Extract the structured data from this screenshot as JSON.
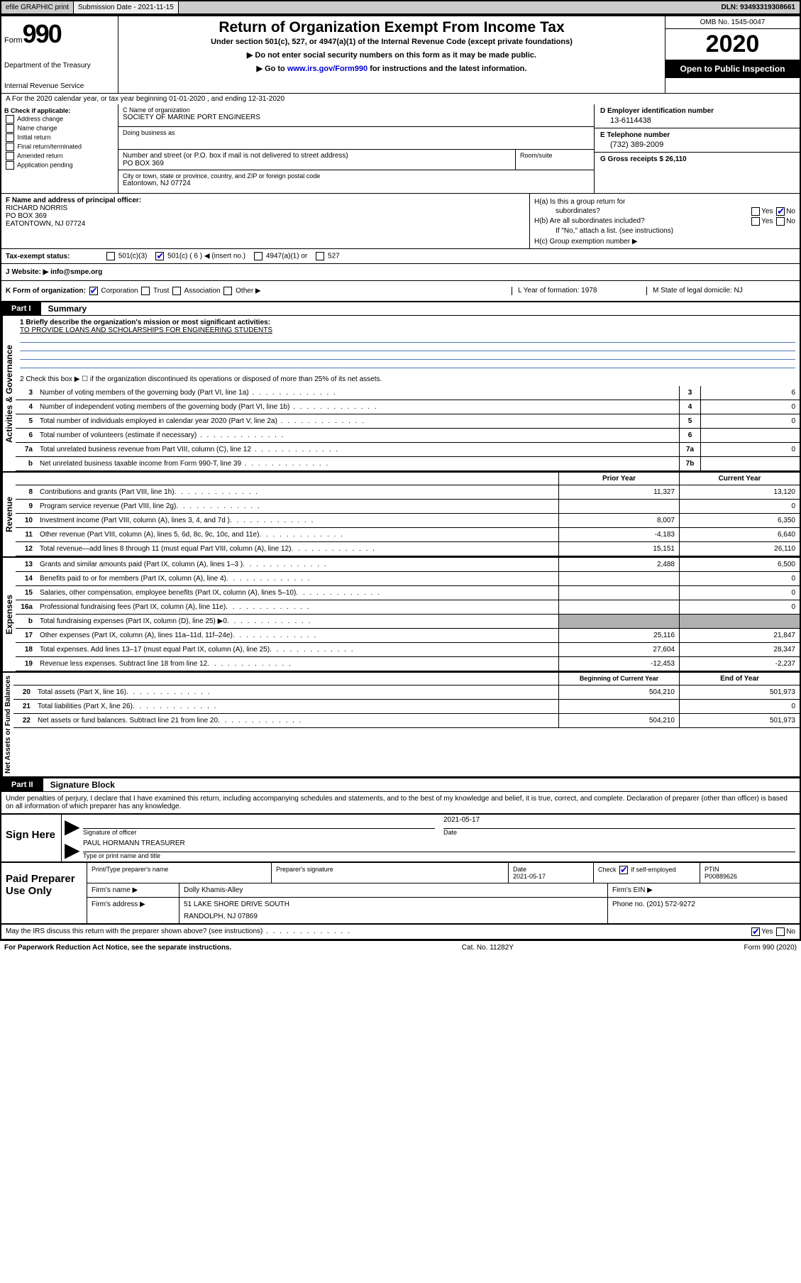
{
  "topbar": {
    "efile": "efile GRAPHIC print",
    "submission_label": "Submission Date - 2021-11-15",
    "dln": "DLN: 93493319308661"
  },
  "header": {
    "form_word": "Form",
    "form_num": "990",
    "dept": "Department of the Treasury",
    "irs": "Internal Revenue Service",
    "title": "Return of Organization Exempt From Income Tax",
    "sub1": "Under section 501(c), 527, or 4947(a)(1) of the Internal Revenue Code (except private foundations)",
    "sub2": "▶ Do not enter social security numbers on this form as it may be made public.",
    "sub3_pre": "▶ Go to ",
    "sub3_link": "www.irs.gov/Form990",
    "sub3_post": " for instructions and the latest information.",
    "omb": "OMB No. 1545-0047",
    "year": "2020",
    "inspect": "Open to Public Inspection"
  },
  "lineA": "A For the 2020 calendar year, or tax year beginning 01-01-2020   , and ending 12-31-2020",
  "colB": {
    "hdr": "B Check if applicable:",
    "o1": "Address change",
    "o2": "Name change",
    "o3": "Initial return",
    "o4": "Final return/terminated",
    "o5": "Amended return",
    "o6": "Application pending"
  },
  "colC": {
    "name_lbl": "C Name of organization",
    "name": "SOCIETY OF MARINE PORT ENGINEERS",
    "dba_lbl": "Doing business as",
    "addr_lbl": "Number and street (or P.O. box if mail is not delivered to street address)",
    "addr": "PO BOX 369",
    "room_lbl": "Room/suite",
    "city_lbl": "City or town, state or province, country, and ZIP or foreign postal code",
    "city": "Eatontown, NJ  07724"
  },
  "colD": {
    "ein_lbl": "D Employer identification number",
    "ein": "13-6114438",
    "tel_lbl": "E Telephone number",
    "tel": "(732) 389-2009",
    "gross_lbl": "G Gross receipts $ 26,110"
  },
  "rowF": {
    "lbl": "F Name and address of principal officer:",
    "l1": "RICHARD NORRIS",
    "l2": "PO BOX 369",
    "l3": "EATONTOWN, NJ  07724"
  },
  "rowH": {
    "ha": "H(a)  Is this a group return for",
    "ha2": "subordinates?",
    "hb": "H(b)  Are all subordinates included?",
    "hb2": "If \"No,\" attach a list. (see instructions)",
    "hc": "H(c)  Group exemption number ▶",
    "yes": "Yes",
    "no": "No"
  },
  "taxRow": {
    "lbl": "Tax-exempt status:",
    "o1": "501(c)(3)",
    "o2": "501(c) ( 6 ) ◀ (insert no.)",
    "o3": "4947(a)(1) or",
    "o4": "527"
  },
  "rowJ": {
    "lbl": "J   Website: ▶",
    "val": "  info@smpe.org"
  },
  "rowK": {
    "lbl": "K Form of organization:",
    "o1": "Corporation",
    "o2": "Trust",
    "o3": "Association",
    "o4": "Other ▶",
    "l_lbl": "L Year of formation: 1978",
    "m_lbl": "M State of legal domicile: NJ"
  },
  "part1": {
    "label": "Part I",
    "title": "Summary"
  },
  "gov": {
    "side": "Activities & Governance",
    "l1a": "1   Briefly describe the organization's mission or most significant activities:",
    "l1b": "TO PROVIDE LOANS AND SCHOLARSHIPS FOR ENGINEERING STUDENTS",
    "l2": "2   Check this box ▶ ☐  if the organization discontinued its operations or disposed of more than 25% of its net assets.",
    "rows": [
      {
        "n": "3",
        "t": "Number of voting members of the governing body (Part VI, line 1a)",
        "bn": "3",
        "v": "6"
      },
      {
        "n": "4",
        "t": "Number of independent voting members of the governing body (Part VI, line 1b)",
        "bn": "4",
        "v": "0"
      },
      {
        "n": "5",
        "t": "Total number of individuals employed in calendar year 2020 (Part V, line 2a)",
        "bn": "5",
        "v": "0"
      },
      {
        "n": "6",
        "t": "Total number of volunteers (estimate if necessary)",
        "bn": "6",
        "v": ""
      },
      {
        "n": "7a",
        "t": "Total unrelated business revenue from Part VIII, column (C), line 12",
        "bn": "7a",
        "v": "0"
      },
      {
        "n": "b",
        "t": "Net unrelated business taxable income from Form 990-T, line 39",
        "bn": "7b",
        "v": ""
      }
    ]
  },
  "colhdr": {
    "c1": "Prior Year",
    "c2": "Current Year"
  },
  "rev": {
    "side": "Revenue",
    "rows": [
      {
        "n": "8",
        "t": "Contributions and grants (Part VIII, line 1h)",
        "v1": "11,327",
        "v2": "13,120"
      },
      {
        "n": "9",
        "t": "Program service revenue (Part VIII, line 2g)",
        "v1": "",
        "v2": "0"
      },
      {
        "n": "10",
        "t": "Investment income (Part VIII, column (A), lines 3, 4, and 7d )",
        "v1": "8,007",
        "v2": "6,350"
      },
      {
        "n": "11",
        "t": "Other revenue (Part VIII, column (A), lines 5, 6d, 8c, 9c, 10c, and 11e)",
        "v1": "-4,183",
        "v2": "6,640"
      },
      {
        "n": "12",
        "t": "Total revenue—add lines 8 through 11 (must equal Part VIII, column (A), line 12)",
        "v1": "15,151",
        "v2": "26,110"
      }
    ]
  },
  "exp": {
    "side": "Expenses",
    "rows": [
      {
        "n": "13",
        "t": "Grants and similar amounts paid (Part IX, column (A), lines 1–3 )",
        "v1": "2,488",
        "v2": "6,500"
      },
      {
        "n": "14",
        "t": "Benefits paid to or for members (Part IX, column (A), line 4)",
        "v1": "",
        "v2": "0"
      },
      {
        "n": "15",
        "t": "Salaries, other compensation, employee benefits (Part IX, column (A), lines 5–10)",
        "v1": "",
        "v2": "0"
      },
      {
        "n": "16a",
        "t": "Professional fundraising fees (Part IX, column (A), line 11e)",
        "v1": "",
        "v2": "0"
      },
      {
        "n": "b",
        "t": "Total fundraising expenses (Part IX, column (D), line 25) ▶0",
        "v1": "shade",
        "v2": "shade"
      },
      {
        "n": "17",
        "t": "Other expenses (Part IX, column (A), lines 11a–11d, 11f–24e)",
        "v1": "25,116",
        "v2": "21,847"
      },
      {
        "n": "18",
        "t": "Total expenses. Add lines 13–17 (must equal Part IX, column (A), line 25)",
        "v1": "27,604",
        "v2": "28,347"
      },
      {
        "n": "19",
        "t": "Revenue less expenses. Subtract line 18 from line 12",
        "v1": "-12,453",
        "v2": "-2,237"
      }
    ]
  },
  "net": {
    "side": "Net Assets or Fund Balances",
    "hdr1": "Beginning of Current Year",
    "hdr2": "End of Year",
    "rows": [
      {
        "n": "20",
        "t": "Total assets (Part X, line 16)",
        "v1": "504,210",
        "v2": "501,973"
      },
      {
        "n": "21",
        "t": "Total liabilities (Part X, line 26)",
        "v1": "",
        "v2": "0"
      },
      {
        "n": "22",
        "t": "Net assets or fund balances. Subtract line 21 from line 20",
        "v1": "504,210",
        "v2": "501,973"
      }
    ]
  },
  "part2": {
    "label": "Part II",
    "title": "Signature Block"
  },
  "sigtext": "Under penalties of perjury, I declare that I have examined this return, including accompanying schedules and statements, and to the best of my knowledge and belief, it is true, correct, and complete. Declaration of preparer (other than officer) is based on all information of which preparer has any knowledge.",
  "sign": {
    "left": "Sign Here",
    "sig_lbl": "Signature of officer",
    "date_lbl": "Date",
    "date_val": "2021-05-17",
    "name": "PAUL HORMANN  TREASURER",
    "name_lbl": "Type or print name and title"
  },
  "prep": {
    "left": "Paid Preparer Use Only",
    "h1": "Print/Type preparer's name",
    "h2": "Preparer's signature",
    "h3": "Date",
    "h3v": "2021-05-17",
    "h4a": "Check",
    "h4b": "if self-employed",
    "h5": "PTIN",
    "h5v": "P00889626",
    "firm_name_lbl": "Firm's name     ▶",
    "firm_name": "Dolly Khamis-Alley",
    "firm_ein_lbl": "Firm's EIN ▶",
    "firm_addr_lbl": "Firm's address ▶",
    "firm_addr1": "51 LAKE SHORE DRIVE SOUTH",
    "firm_addr2": "RANDOLPH, NJ  07869",
    "phone_lbl": "Phone no. (201) 572-9272"
  },
  "may": {
    "txt": "May the IRS discuss this return with the preparer shown above? (see instructions)",
    "yes": "Yes",
    "no": "No"
  },
  "footer": {
    "l": "For Paperwork Reduction Act Notice, see the separate instructions.",
    "m": "Cat. No. 11282Y",
    "r": "Form 990 (2020)"
  }
}
